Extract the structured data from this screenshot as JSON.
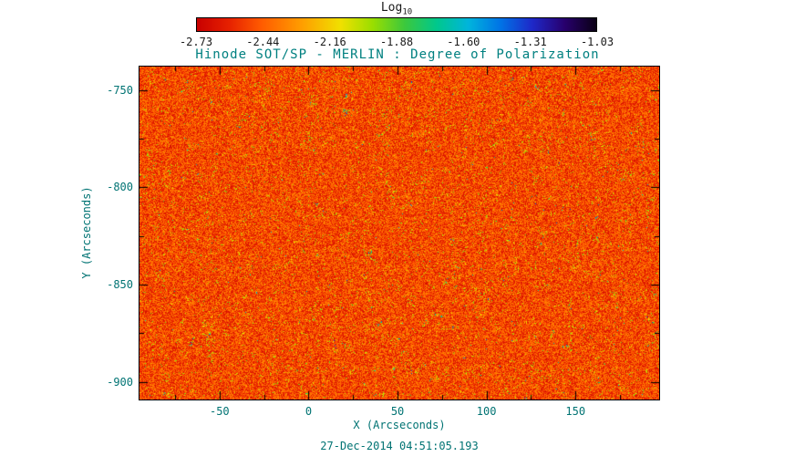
{
  "colors": {
    "background": "#ffffff",
    "frame": "#000000",
    "title_text": "#008080",
    "axis_text": "#007373",
    "colorbar_text": "#1a1a1a"
  },
  "chart_data": {
    "type": "heatmap",
    "title": "Hinode SOT/SP - MERLIN : Degree of Polarization",
    "xlabel": "X (Arcseconds)",
    "ylabel": "Y (Arcseconds)",
    "timestamp": "27-Dec-2014 04:51:05.193",
    "xlim": [
      -95,
      197
    ],
    "ylim": [
      -909,
      -738
    ],
    "xticks": [
      -50,
      0,
      50,
      100,
      150
    ],
    "yticks": [
      -750,
      -800,
      -850,
      -900
    ],
    "minor_tick_interval": 25,
    "grid": false,
    "colorbar": {
      "label_main": "Log",
      "label_sub": "10",
      "position": "top",
      "range": [
        -2.73,
        -1.03
      ],
      "ticks": [
        "-2.73",
        "-2.44",
        "-2.16",
        "-1.88",
        "-1.60",
        "-1.31",
        "-1.03"
      ],
      "stops": [
        {
          "pos": 0.0,
          "color": "#c80000"
        },
        {
          "pos": 0.08,
          "color": "#e62000"
        },
        {
          "pos": 0.16,
          "color": "#ff5a00"
        },
        {
          "pos": 0.26,
          "color": "#ff9c00"
        },
        {
          "pos": 0.36,
          "color": "#f0e000"
        },
        {
          "pos": 0.44,
          "color": "#9ade00"
        },
        {
          "pos": 0.52,
          "color": "#3cc83c"
        },
        {
          "pos": 0.6,
          "color": "#00c88c"
        },
        {
          "pos": 0.68,
          "color": "#00b4dc"
        },
        {
          "pos": 0.76,
          "color": "#0073e6"
        },
        {
          "pos": 0.84,
          "color": "#1e28c8"
        },
        {
          "pos": 0.92,
          "color": "#28006e"
        },
        {
          "pos": 1.0,
          "color": "#0a0014"
        }
      ]
    },
    "field_summary": "Speckled solar polarization map: dominant values near the low end of the scale (red/orange, log10 ~ -2.6) with clustered speckles reaching yellow/green (~ -1.9) and rare small patches of cyan/blue (~ -1.4).",
    "noise": {
      "seed": 1337
    }
  }
}
